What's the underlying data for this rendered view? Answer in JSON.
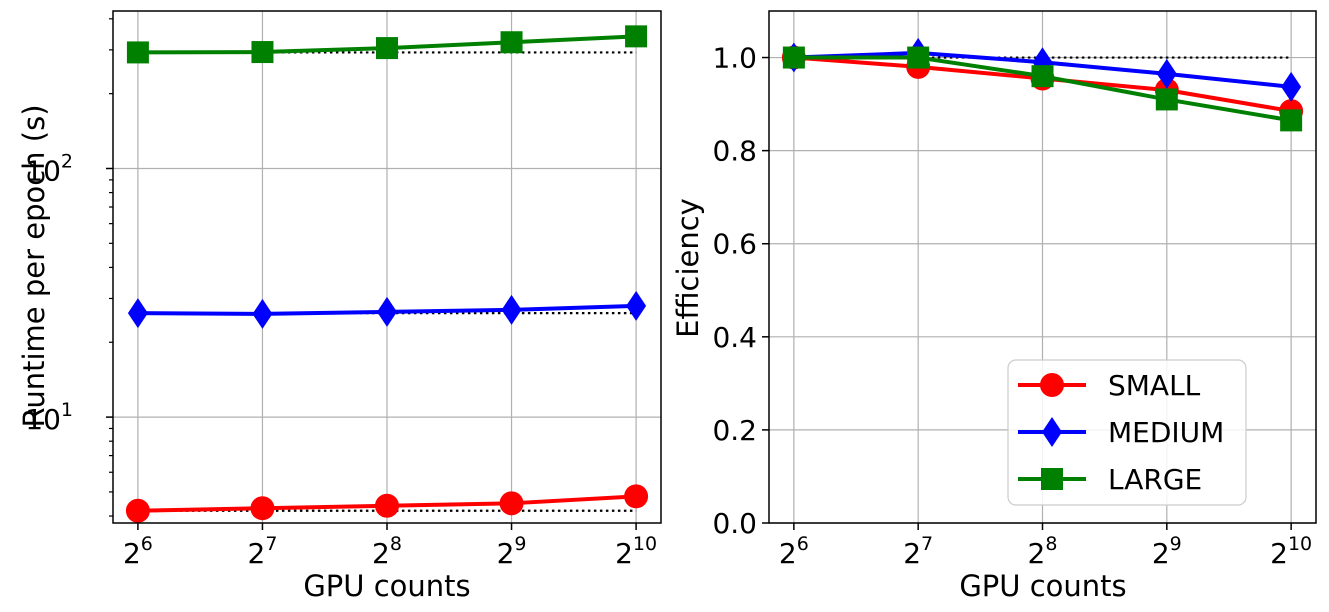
{
  "chart_data": [
    {
      "type": "line",
      "yscale": "log",
      "xlabel": "GPU counts",
      "ylabel": "Runtime per epoch (s)",
      "x_tick_labels": [
        {
          "base": "2",
          "exp": "6"
        },
        {
          "base": "2",
          "exp": "7"
        },
        {
          "base": "2",
          "exp": "8"
        },
        {
          "base": "2",
          "exp": "9"
        },
        {
          "base": "2",
          "exp": "10"
        }
      ],
      "x": [
        64,
        128,
        256,
        512,
        1024
      ],
      "y_ticks": [
        {
          "base": "10",
          "exp": "1",
          "value": 10
        },
        {
          "base": "10",
          "exp": "2",
          "value": 100
        }
      ],
      "ylim": [
        3.75,
        430
      ],
      "grid": true,
      "series": [
        {
          "name": "SMALL",
          "color": "#ff0000",
          "marker": "circle",
          "values": [
            4.2,
            4.3,
            4.4,
            4.5,
            4.8
          ],
          "ideal": [
            4.2,
            4.2,
            4.2,
            4.2,
            4.2
          ]
        },
        {
          "name": "MEDIUM",
          "color": "#0000ff",
          "marker": "diamond",
          "values": [
            26.2,
            26.0,
            26.5,
            27.0,
            28.0
          ],
          "ideal": [
            26.2,
            26.2,
            26.2,
            26.2,
            26.2
          ]
        },
        {
          "name": "LARGE",
          "color": "#008000",
          "marker": "square",
          "values": [
            293,
            294,
            305,
            322,
            340
          ],
          "ideal": [
            293,
            293,
            293,
            293,
            293
          ]
        }
      ]
    },
    {
      "type": "line",
      "yscale": "linear",
      "xlabel": "GPU counts",
      "ylabel": "Efficiency",
      "x_tick_labels": [
        {
          "base": "2",
          "exp": "6"
        },
        {
          "base": "2",
          "exp": "7"
        },
        {
          "base": "2",
          "exp": "8"
        },
        {
          "base": "2",
          "exp": "9"
        },
        {
          "base": "2",
          "exp": "10"
        }
      ],
      "x": [
        64,
        128,
        256,
        512,
        1024
      ],
      "y_ticks": [
        "0.0",
        "0.2",
        "0.4",
        "0.6",
        "0.8",
        "1.0"
      ],
      "ylim": [
        0,
        1.1
      ],
      "grid": true,
      "ideal": [
        1.0,
        1.0,
        1.0,
        1.0,
        1.0
      ],
      "legend": {
        "position": "lower-right",
        "entries": [
          "SMALL",
          "MEDIUM",
          "LARGE"
        ]
      },
      "series": [
        {
          "name": "SMALL",
          "color": "#ff0000",
          "marker": "circle",
          "values": [
            1.0,
            0.98,
            0.955,
            0.93,
            0.885
          ]
        },
        {
          "name": "MEDIUM",
          "color": "#0000ff",
          "marker": "diamond",
          "values": [
            1.0,
            1.01,
            0.99,
            0.965,
            0.937
          ]
        },
        {
          "name": "LARGE",
          "color": "#008000",
          "marker": "square",
          "values": [
            1.0,
            1.0,
            0.96,
            0.91,
            0.865
          ]
        }
      ]
    }
  ]
}
